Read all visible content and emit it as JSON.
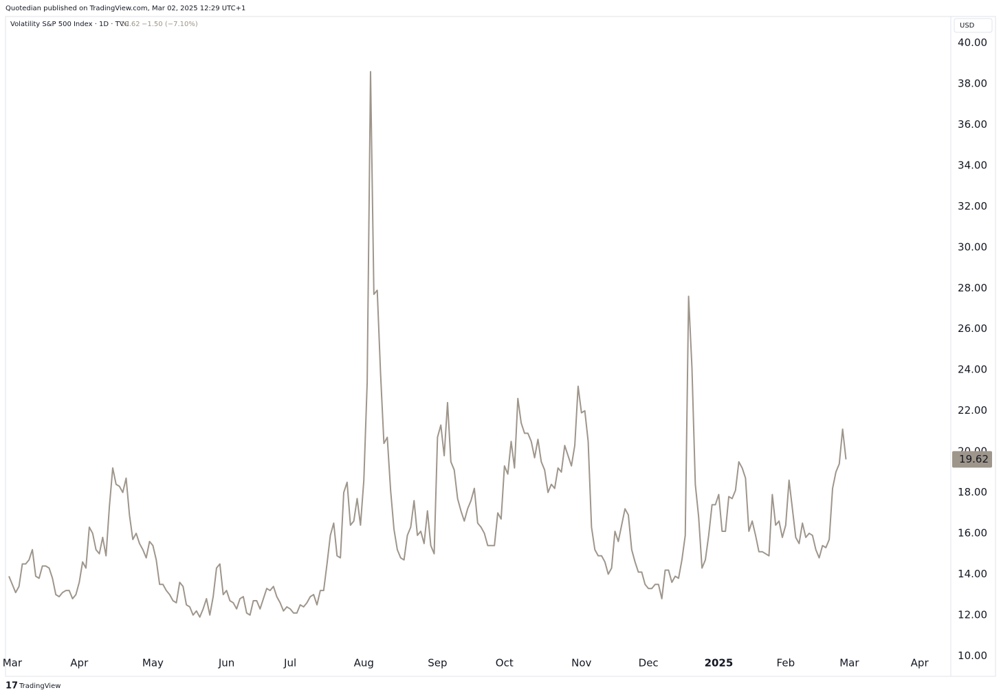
{
  "chart_data": {
    "type": "line",
    "publisher": "Quotedian published on TradingView.com, Mar 02, 2025 12:29 UTC+1",
    "symbol": "Volatility S&P 500 Index · 1D · TVC",
    "last": "19.62",
    "change": "−1.50 (−7.10%)",
    "currency": "USD",
    "brand": "TradingView",
    "color": "#9e958b",
    "grid": false,
    "ylim": [
      9.0,
      41.3
    ],
    "yticks": [
      {
        "value": 10,
        "label": "10.00"
      },
      {
        "value": 12,
        "label": "12.00"
      },
      {
        "value": 14,
        "label": "14.00"
      },
      {
        "value": 16,
        "label": "16.00"
      },
      {
        "value": 18,
        "label": "18.00"
      },
      {
        "value": 20,
        "label": "20.00"
      },
      {
        "value": 22,
        "label": "22.00"
      },
      {
        "value": 24,
        "label": "24.00"
      },
      {
        "value": 26,
        "label": "26.00"
      },
      {
        "value": 28,
        "label": "28.00"
      },
      {
        "value": 30,
        "label": "30.00"
      },
      {
        "value": 32,
        "label": "32.00"
      },
      {
        "value": 34,
        "label": "34.00"
      },
      {
        "value": 36,
        "label": "36.00"
      },
      {
        "value": 38,
        "label": "38.00"
      },
      {
        "value": 40,
        "label": "40.00"
      }
    ],
    "categories": [
      null,
      "Mar",
      null,
      null,
      null,
      null,
      null,
      null,
      null,
      null,
      null,
      null,
      null,
      null,
      null,
      null,
      null,
      null,
      null,
      null,
      null,
      "Apr",
      null,
      null,
      null,
      null,
      null,
      null,
      null,
      null,
      null,
      null,
      null,
      null,
      null,
      null,
      null,
      null,
      null,
      null,
      null,
      null,
      null,
      "May",
      null,
      null,
      null,
      null,
      null,
      null,
      null,
      null,
      null,
      null,
      null,
      null,
      null,
      null,
      null,
      null,
      null,
      null,
      null,
      null,
      null,
      "Jun",
      null,
      null,
      null,
      null,
      null,
      null,
      null,
      null,
      null,
      null,
      null,
      null,
      null,
      null,
      null,
      null,
      null,
      null,
      "Jul",
      null,
      null,
      null,
      null,
      null,
      null,
      null,
      null,
      null,
      null,
      null,
      null,
      null,
      null,
      null,
      null,
      null,
      null,
      null,
      null,
      null,
      "Aug",
      null,
      null,
      null,
      null,
      null,
      null,
      null,
      null,
      null,
      null,
      null,
      null,
      null,
      null,
      null,
      null,
      null,
      null,
      null,
      null,
      null,
      "Sep",
      null,
      null,
      null,
      null,
      null,
      null,
      null,
      null,
      null,
      null,
      null,
      null,
      null,
      null,
      null,
      null,
      null,
      null,
      null,
      "Oct",
      null,
      null,
      null,
      null,
      null,
      null,
      null,
      null,
      null,
      null,
      null,
      null,
      null,
      null,
      null,
      null,
      null,
      null,
      null,
      null,
      null,
      null,
      "Nov",
      null,
      null,
      null,
      null,
      null,
      null,
      null,
      null,
      null,
      null,
      null,
      null,
      null,
      null,
      null,
      null,
      null,
      null,
      null,
      "Dec",
      null,
      null,
      null,
      null,
      null,
      null,
      null,
      null,
      null,
      null,
      null,
      null,
      null,
      null,
      null,
      null,
      null,
      null,
      null,
      null,
      "2025",
      null,
      null,
      null,
      null,
      null,
      null,
      null,
      null,
      null,
      null,
      null,
      null,
      null,
      null,
      null,
      null,
      null,
      null,
      null,
      "Feb",
      null,
      null,
      null,
      null,
      null,
      null,
      null,
      null,
      null,
      null,
      null,
      null,
      null,
      null,
      null,
      null,
      null,
      null,
      "Mar",
      null,
      null,
      null,
      null,
      null,
      null,
      null,
      null,
      null,
      null,
      null,
      null,
      null,
      null,
      null,
      null,
      null,
      null,
      null,
      null,
      "Apr",
      null,
      null,
      null,
      null,
      null,
      null,
      null
    ],
    "values": [
      13.9,
      13.5,
      13.1,
      13.4,
      14.5,
      14.5,
      14.7,
      15.2,
      13.9,
      13.8,
      14.4,
      14.4,
      14.3,
      13.8,
      13.0,
      12.9,
      13.1,
      13.2,
      13.2,
      12.8,
      13.0,
      13.6,
      14.6,
      14.3,
      16.3,
      16.0,
      15.2,
      15.0,
      15.8,
      14.9,
      17.3,
      19.2,
      18.4,
      18.3,
      18.0,
      18.7,
      16.9,
      15.7,
      16.0,
      15.5,
      15.2,
      14.8,
      15.6,
      15.4,
      14.7,
      13.5,
      13.5,
      13.2,
      13.0,
      12.7,
      12.6,
      13.6,
      13.4,
      12.5,
      12.4,
      12.0,
      12.2,
      11.9,
      12.3,
      12.8,
      12.0,
      12.9,
      14.3,
      14.5,
      13.0,
      13.2,
      12.7,
      12.6,
      12.3,
      12.8,
      12.9,
      12.1,
      12.0,
      12.7,
      12.7,
      12.3,
      12.8,
      13.3,
      13.2,
      13.4,
      12.9,
      12.6,
      12.2,
      12.4,
      12.3,
      12.1,
      12.1,
      12.5,
      12.4,
      12.6,
      12.9,
      13.0,
      12.5,
      13.2,
      13.2,
      14.5,
      15.9,
      16.5,
      14.9,
      14.8,
      18.0,
      18.5,
      16.4,
      16.6,
      17.7,
      16.4,
      18.6,
      23.4,
      38.6,
      27.7,
      27.9,
      23.8,
      20.4,
      20.7,
      18.1,
      16.2,
      15.2,
      14.8,
      14.7,
      15.9,
      16.3,
      17.6,
      15.9,
      16.1,
      15.5,
      17.1,
      15.4,
      15.0,
      20.7,
      21.3,
      19.8,
      22.4,
      19.5,
      19.1,
      17.7,
      17.1,
      16.6,
      17.2,
      17.6,
      18.2,
      16.5,
      16.3,
      16.0,
      15.4,
      15.4,
      15.4,
      17.0,
      16.7,
      19.3,
      18.9,
      20.5,
      19.2,
      22.6,
      21.4,
      20.9,
      20.9,
      20.5,
      19.7,
      20.6,
      19.5,
      19.1,
      18.0,
      18.4,
      18.2,
      19.2,
      19.0,
      20.3,
      19.8,
      19.3,
      20.3,
      23.2,
      21.9,
      22.0,
      20.5,
      16.3,
      15.2,
      14.9,
      14.9,
      14.6,
      14.0,
      14.3,
      16.1,
      15.6,
      16.4,
      17.2,
      16.9,
      15.2,
      14.6,
      14.1,
      14.1,
      13.5,
      13.3,
      13.3,
      13.5,
      13.5,
      12.8,
      14.2,
      14.2,
      13.6,
      13.9,
      13.8,
      14.7,
      15.9,
      27.6,
      24.1,
      18.4,
      16.8,
      14.3,
      14.7,
      15.9,
      17.4,
      17.4,
      17.9,
      16.1,
      16.1,
      17.8,
      17.7,
      18.1,
      19.5,
      19.2,
      18.7,
      16.1,
      16.6,
      15.9,
      15.1,
      15.1,
      15.0,
      14.9,
      17.9,
      16.4,
      16.6,
      15.8,
      16.4,
      18.6,
      17.2,
      15.8,
      15.5,
      16.5,
      15.8,
      16.0,
      15.9,
      15.2,
      14.8,
      15.4,
      15.3,
      15.7,
      18.2,
      19.0,
      19.4,
      21.1,
      19.62,
      null,
      null,
      null,
      null,
      null,
      null,
      null,
      null,
      null,
      null,
      null,
      null,
      null,
      null,
      null,
      null,
      null,
      null,
      null,
      null,
      null,
      null,
      null,
      null,
      null,
      null,
      null,
      null,
      null
    ]
  }
}
